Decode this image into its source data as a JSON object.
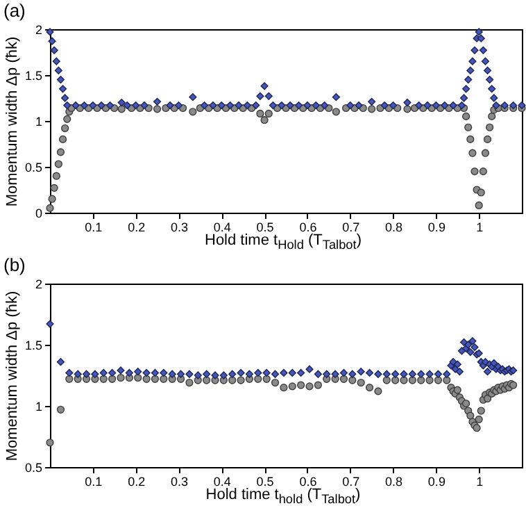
{
  "chart_data": [
    {
      "type": "scatter",
      "title": "(a)",
      "xlabel": "Hold time t$_{Hold}$ (T$_{Talbot}$)",
      "ylabel": "Momentum width Δp (ħk)",
      "xlim": [
        0,
        1.1
      ],
      "xticks": [
        0.1,
        0.2,
        0.3,
        0.4,
        0.5,
        0.6,
        0.7,
        0.8,
        0.9,
        1
      ],
      "ylim": [
        0,
        2
      ],
      "yticks": [
        0,
        0.5,
        1,
        1.5,
        2
      ],
      "series": [
        {
          "color": "#8a8a8a",
          "marker": "circle",
          "x": [
            0,
            0.005,
            0.01,
            0.015,
            0.02,
            0.025,
            0.03,
            0.035,
            0.04,
            0.045,
            0.05,
            0.07,
            0.09,
            0.11,
            0.13,
            0.15,
            0.167,
            0.19,
            0.21,
            0.23,
            0.25,
            0.27,
            0.29,
            0.31,
            0.333,
            0.35,
            0.37,
            0.39,
            0.41,
            0.43,
            0.45,
            0.47,
            0.49,
            0.5,
            0.51,
            0.53,
            0.55,
            0.57,
            0.59,
            0.61,
            0.63,
            0.65,
            0.667,
            0.69,
            0.71,
            0.73,
            0.75,
            0.77,
            0.79,
            0.81,
            0.833,
            0.85,
            0.87,
            0.89,
            0.91,
            0.93,
            0.95,
            0.965,
            0.97,
            0.975,
            0.98,
            0.985,
            0.99,
            0.995,
            1.0,
            1.005,
            1.01,
            1.015,
            1.02,
            1.025,
            1.03,
            1.035,
            1.045,
            1.06,
            1.08,
            1.1
          ],
          "values": [
            0.05,
            0.15,
            0.27,
            0.4,
            0.53,
            0.66,
            0.8,
            0.92,
            1.02,
            1.1,
            1.14,
            1.14,
            1.14,
            1.14,
            1.14,
            1.14,
            1.13,
            1.14,
            1.14,
            1.14,
            1.13,
            1.14,
            1.14,
            1.14,
            1.1,
            1.14,
            1.14,
            1.14,
            1.14,
            1.14,
            1.14,
            1.14,
            1.08,
            1.01,
            1.08,
            1.14,
            1.14,
            1.14,
            1.14,
            1.14,
            1.14,
            1.14,
            1.1,
            1.14,
            1.14,
            1.14,
            1.13,
            1.14,
            1.14,
            1.14,
            1.13,
            1.14,
            1.14,
            1.14,
            1.14,
            1.14,
            1.14,
            1.14,
            1.05,
            0.93,
            0.8,
            0.65,
            0.45,
            0.25,
            0.08,
            0.22,
            0.45,
            0.65,
            0.8,
            0.93,
            1.05,
            1.12,
            1.14,
            1.14,
            1.14,
            1.14
          ]
        },
        {
          "color": "#4455bb",
          "marker": "diamond",
          "x": [
            0,
            0.005,
            0.01,
            0.015,
            0.02,
            0.025,
            0.03,
            0.035,
            0.04,
            0.06,
            0.08,
            0.1,
            0.12,
            0.14,
            0.167,
            0.18,
            0.2,
            0.22,
            0.25,
            0.28,
            0.3,
            0.333,
            0.36,
            0.38,
            0.4,
            0.42,
            0.44,
            0.46,
            0.48,
            0.49,
            0.5,
            0.51,
            0.52,
            0.54,
            0.56,
            0.58,
            0.6,
            0.62,
            0.64,
            0.667,
            0.7,
            0.72,
            0.75,
            0.78,
            0.8,
            0.833,
            0.86,
            0.88,
            0.9,
            0.92,
            0.94,
            0.96,
            0.965,
            0.97,
            0.975,
            0.98,
            0.985,
            0.99,
            0.995,
            1.0,
            1.005,
            1.01,
            1.015,
            1.02,
            1.025,
            1.03,
            1.035,
            1.04,
            1.06,
            1.08,
            1.1
          ],
          "values": [
            1.97,
            1.87,
            1.77,
            1.65,
            1.55,
            1.45,
            1.35,
            1.25,
            1.17,
            1.17,
            1.17,
            1.17,
            1.17,
            1.17,
            1.2,
            1.17,
            1.17,
            1.17,
            1.21,
            1.17,
            1.17,
            1.26,
            1.17,
            1.17,
            1.17,
            1.17,
            1.17,
            1.17,
            1.17,
            1.27,
            1.38,
            1.27,
            1.17,
            1.17,
            1.17,
            1.17,
            1.17,
            1.17,
            1.17,
            1.26,
            1.17,
            1.17,
            1.21,
            1.17,
            1.17,
            1.2,
            1.17,
            1.17,
            1.17,
            1.17,
            1.17,
            1.17,
            1.25,
            1.35,
            1.45,
            1.55,
            1.65,
            1.77,
            1.9,
            1.97,
            1.9,
            1.77,
            1.65,
            1.55,
            1.45,
            1.35,
            1.25,
            1.17,
            1.17,
            1.17,
            1.17
          ]
        }
      ]
    },
    {
      "type": "scatter",
      "title": "(b)",
      "xlabel": "Hold time t$_{hold}$ (T$_{Talbot}$)",
      "ylabel": "Momentum width Δp (ħk)",
      "xlim": [
        0,
        1.1
      ],
      "xticks": [
        0.1,
        0.2,
        0.3,
        0.4,
        0.5,
        0.6,
        0.7,
        0.8,
        0.9,
        1
      ],
      "ylim": [
        0.5,
        2
      ],
      "yticks": [
        0.5,
        1,
        1.5,
        2
      ],
      "series": [
        {
          "color": "#8a8a8a",
          "marker": "circle",
          "x": [
            0,
            0.025,
            0.045,
            0.065,
            0.085,
            0.105,
            0.125,
            0.145,
            0.165,
            0.185,
            0.205,
            0.225,
            0.245,
            0.265,
            0.285,
            0.305,
            0.325,
            0.345,
            0.365,
            0.385,
            0.405,
            0.425,
            0.445,
            0.465,
            0.485,
            0.505,
            0.525,
            0.545,
            0.565,
            0.585,
            0.605,
            0.625,
            0.645,
            0.665,
            0.685,
            0.705,
            0.725,
            0.745,
            0.765,
            0.785,
            0.805,
            0.825,
            0.845,
            0.865,
            0.885,
            0.905,
            0.925,
            0.935,
            0.94,
            0.945,
            0.95,
            0.955,
            0.96,
            0.965,
            0.97,
            0.975,
            0.98,
            0.985,
            0.99,
            0.995,
            1.0,
            1.005,
            1.01,
            1.015,
            1.02,
            1.025,
            1.03,
            1.035,
            1.04,
            1.045,
            1.05,
            1.055,
            1.06,
            1.065,
            1.07,
            1.075,
            1.08
          ],
          "values": [
            0.7,
            0.97,
            1.22,
            1.22,
            1.22,
            1.22,
            1.22,
            1.22,
            1.23,
            1.23,
            1.23,
            1.22,
            1.22,
            1.22,
            1.22,
            1.22,
            1.19,
            1.21,
            1.21,
            1.21,
            1.21,
            1.21,
            1.21,
            1.22,
            1.22,
            1.22,
            1.19,
            1.15,
            1.16,
            1.17,
            1.16,
            1.17,
            1.22,
            1.22,
            1.22,
            1.21,
            1.19,
            1.15,
            1.12,
            1.21,
            1.21,
            1.21,
            1.21,
            1.21,
            1.21,
            1.21,
            1.21,
            1.15,
            1.12,
            1.1,
            1.13,
            1.07,
            1.04,
            1.0,
            1.02,
            0.96,
            0.92,
            0.87,
            0.84,
            0.82,
            0.89,
            0.96,
            1.05,
            1.09,
            1.06,
            1.11,
            1.1,
            1.13,
            1.12,
            1.15,
            1.13,
            1.16,
            1.14,
            1.17,
            1.15,
            1.18,
            1.17
          ]
        },
        {
          "color": "#4455bb",
          "marker": "diamond",
          "x": [
            0,
            0.025,
            0.045,
            0.065,
            0.085,
            0.105,
            0.125,
            0.145,
            0.165,
            0.185,
            0.205,
            0.225,
            0.245,
            0.265,
            0.285,
            0.305,
            0.325,
            0.345,
            0.365,
            0.385,
            0.405,
            0.425,
            0.445,
            0.465,
            0.485,
            0.505,
            0.525,
            0.545,
            0.565,
            0.585,
            0.605,
            0.625,
            0.645,
            0.665,
            0.685,
            0.705,
            0.725,
            0.745,
            0.765,
            0.785,
            0.805,
            0.825,
            0.845,
            0.865,
            0.885,
            0.905,
            0.925,
            0.935,
            0.94,
            0.945,
            0.95,
            0.955,
            0.96,
            0.965,
            0.97,
            0.975,
            0.98,
            0.985,
            0.99,
            0.995,
            1.0,
            1.005,
            1.01,
            1.015,
            1.02,
            1.025,
            1.03,
            1.035,
            1.04,
            1.045,
            1.05,
            1.055,
            1.06,
            1.065,
            1.07,
            1.075,
            1.08
          ],
          "values": [
            1.67,
            1.36,
            1.27,
            1.26,
            1.26,
            1.26,
            1.27,
            1.27,
            1.29,
            1.27,
            1.28,
            1.27,
            1.27,
            1.27,
            1.26,
            1.26,
            1.26,
            1.25,
            1.26,
            1.25,
            1.25,
            1.26,
            1.27,
            1.26,
            1.27,
            1.27,
            1.26,
            1.27,
            1.27,
            1.27,
            1.3,
            1.26,
            1.26,
            1.26,
            1.27,
            1.26,
            1.28,
            1.27,
            1.26,
            1.26,
            1.26,
            1.26,
            1.26,
            1.26,
            1.26,
            1.26,
            1.26,
            1.33,
            1.36,
            1.3,
            1.34,
            1.28,
            1.45,
            1.52,
            1.47,
            1.5,
            1.44,
            1.53,
            1.48,
            1.42,
            1.43,
            1.36,
            1.33,
            1.36,
            1.28,
            1.34,
            1.32,
            1.35,
            1.3,
            1.32,
            1.29,
            1.3,
            1.28,
            1.29,
            1.3,
            1.28,
            1.29
          ]
        }
      ]
    }
  ]
}
